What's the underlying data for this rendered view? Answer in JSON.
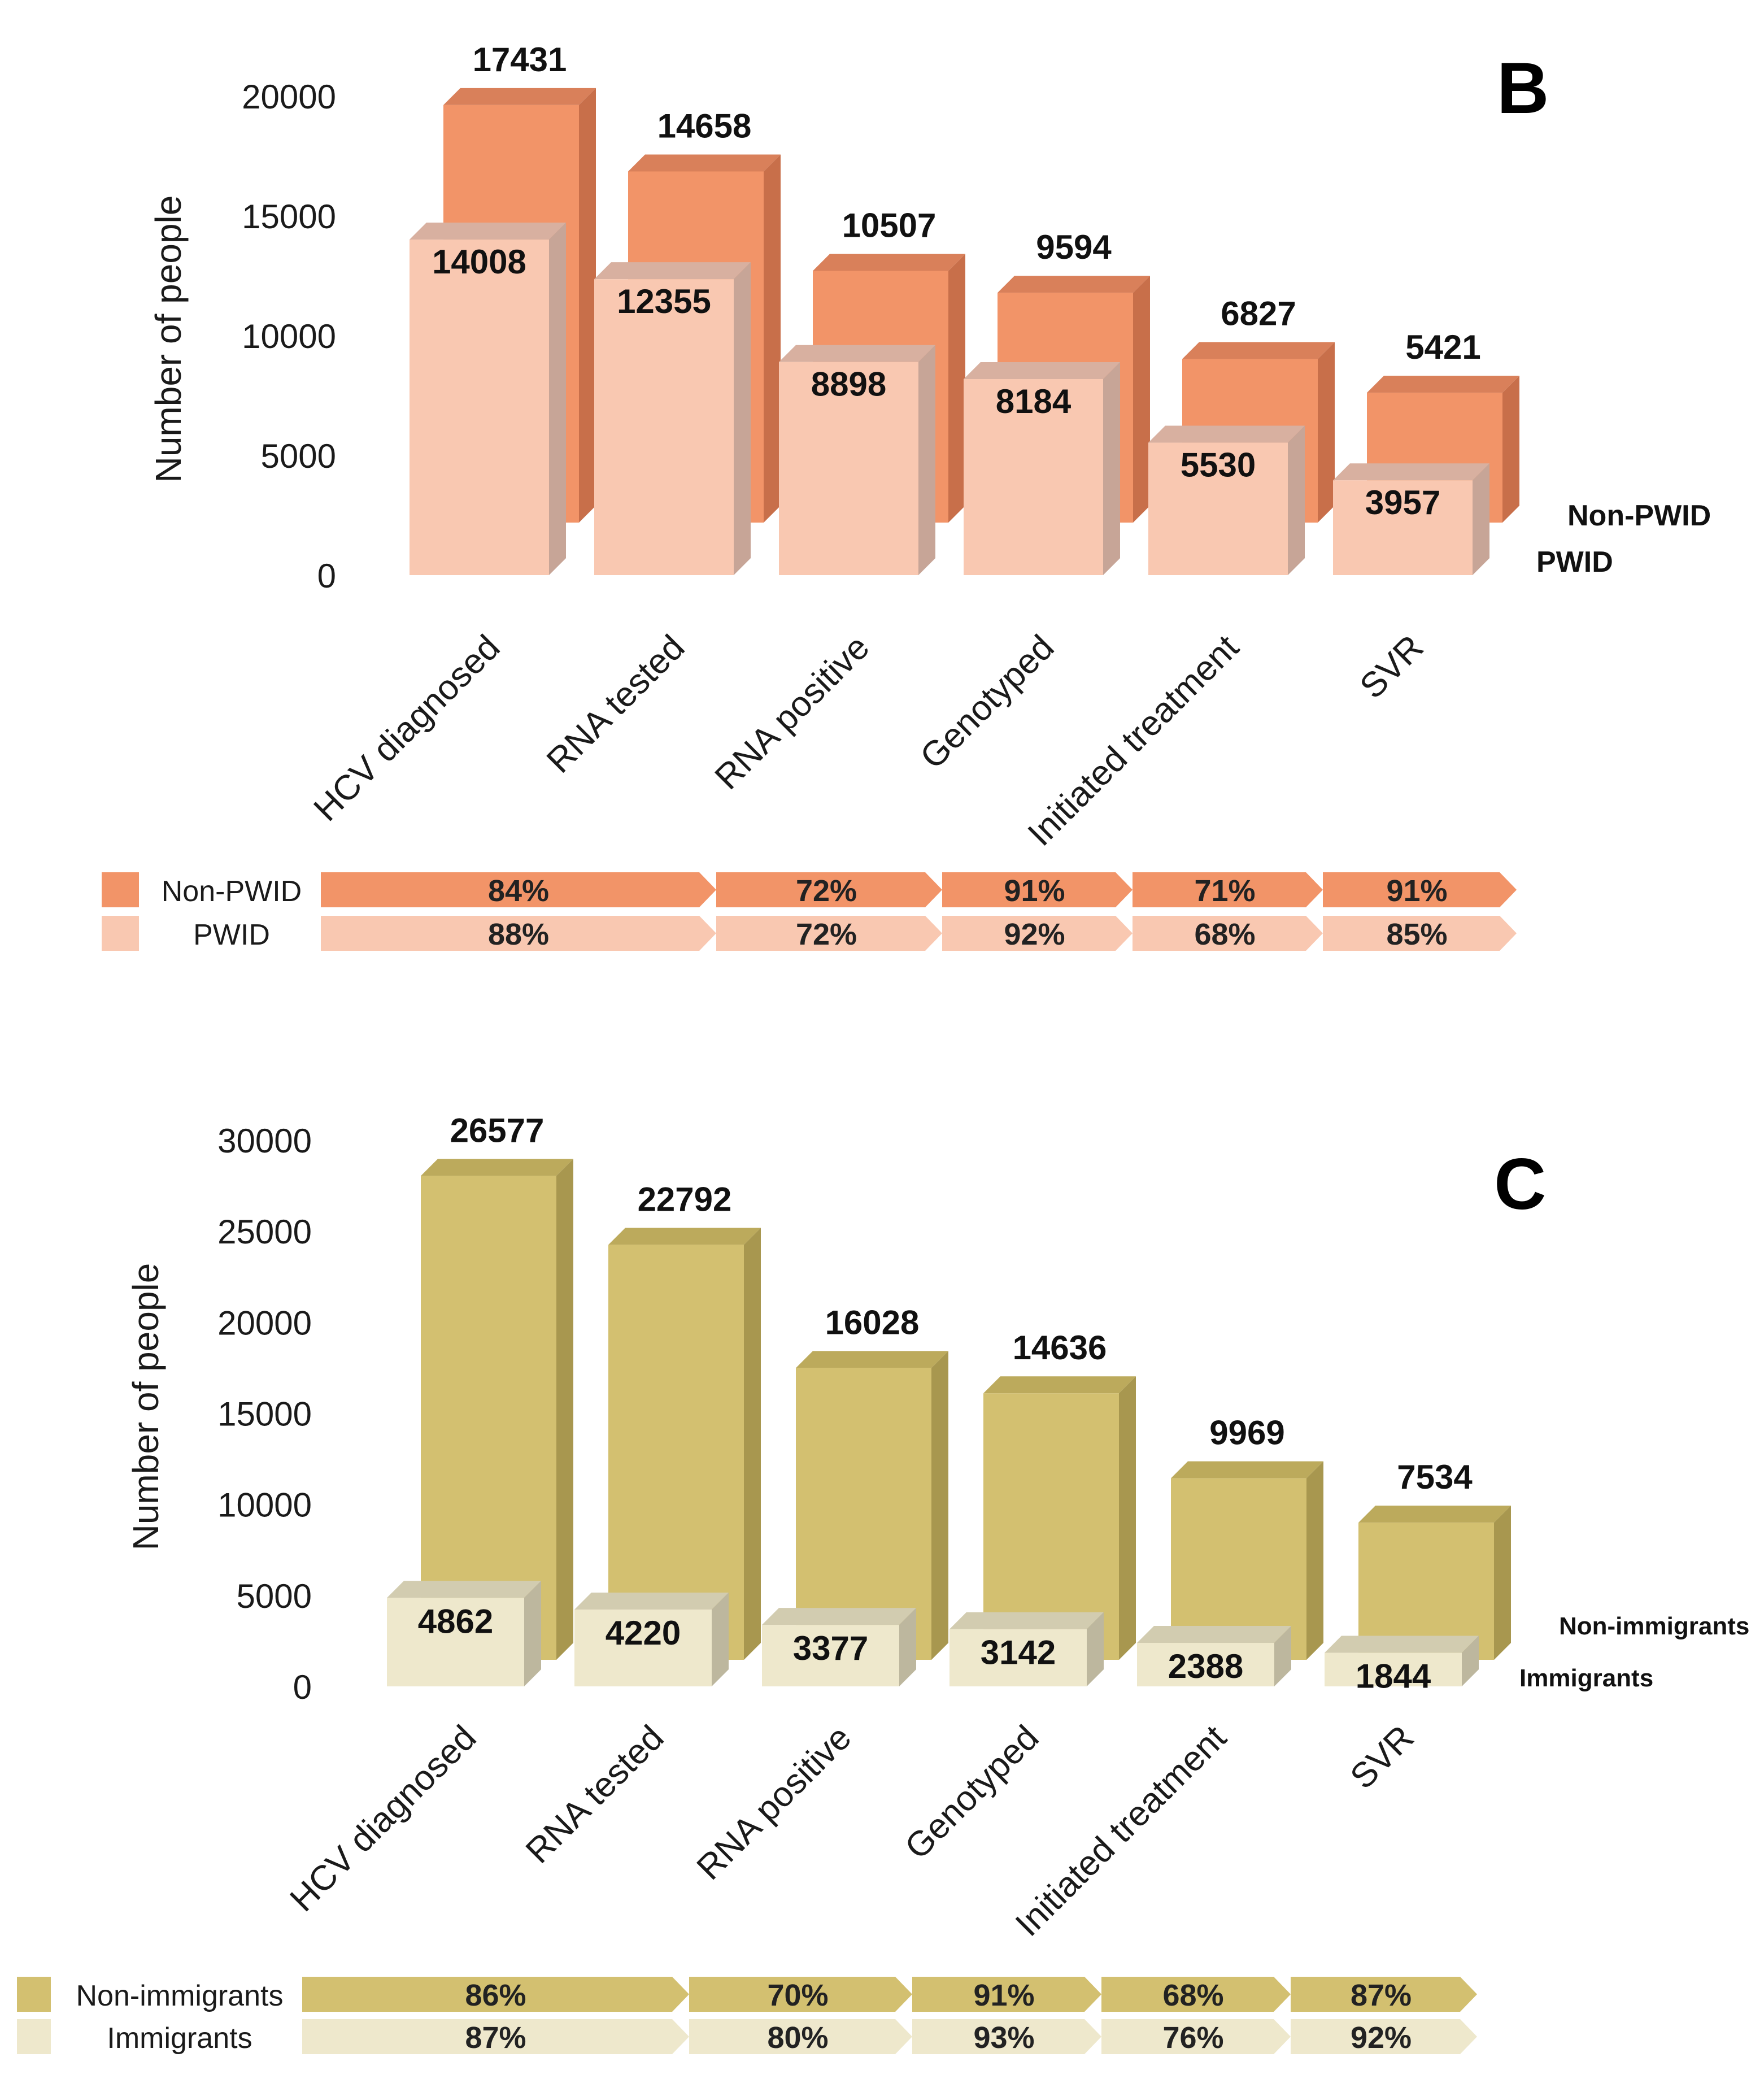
{
  "chart_data": [
    {
      "type": "bar",
      "panel_letter": "B",
      "ylabel": "Number of people",
      "ylim": [
        0,
        20000
      ],
      "yticks": [
        0,
        5000,
        10000,
        15000,
        20000
      ],
      "categories": [
        "HCV diagnosed",
        "RNA tested",
        "RNA positive",
        "Genotyped",
        "Initiated treatment",
        "SVR"
      ],
      "series": [
        {
          "name": "Non-PWID",
          "values": [
            17431,
            14658,
            10507,
            9594,
            6827,
            5421
          ],
          "color": "#F29468",
          "side": "#C86F4A",
          "top": "#D9805A"
        },
        {
          "name": "PWID",
          "values": [
            14008,
            12355,
            8898,
            8184,
            5530,
            3957
          ],
          "color": "#F9C8B1",
          "side": "#C7A597",
          "top": "#D8B0A0"
        }
      ],
      "transition_table": {
        "rows": [
          {
            "name": "Non-PWID",
            "values": [
              "84%",
              "72%",
              "91%",
              "71%",
              "91%"
            ]
          },
          {
            "name": "PWID",
            "values": [
              "88%",
              "72%",
              "92%",
              "68%",
              "85%"
            ]
          }
        ]
      }
    },
    {
      "type": "bar",
      "panel_letter": "C",
      "ylabel": "Number of people",
      "ylim": [
        0,
        30000
      ],
      "yticks": [
        0,
        5000,
        10000,
        15000,
        20000,
        25000,
        30000
      ],
      "categories": [
        "HCV diagnosed",
        "RNA tested",
        "RNA positive",
        "Genotyped",
        "Initiated treatment",
        "SVR"
      ],
      "series": [
        {
          "name": "Non-immigrants",
          "values": [
            26577,
            22792,
            16028,
            14636,
            9969,
            7534
          ],
          "color": "#D3C070",
          "side": "#A8974F",
          "top": "#BCAA5C"
        },
        {
          "name": "Immigrants",
          "values": [
            4862,
            4220,
            3377,
            3142,
            2388,
            1844
          ],
          "color": "#EEE8CC",
          "side": "#BDB79E",
          "top": "#D2CCB0"
        }
      ],
      "transition_table": {
        "rows": [
          {
            "name": "Non-immigrants",
            "values": [
              "86%",
              "70%",
              "91%",
              "68%",
              "87%"
            ]
          },
          {
            "name": "Immigrants",
            "values": [
              "87%",
              "80%",
              "93%",
              "76%",
              "92%"
            ]
          }
        ]
      }
    }
  ]
}
